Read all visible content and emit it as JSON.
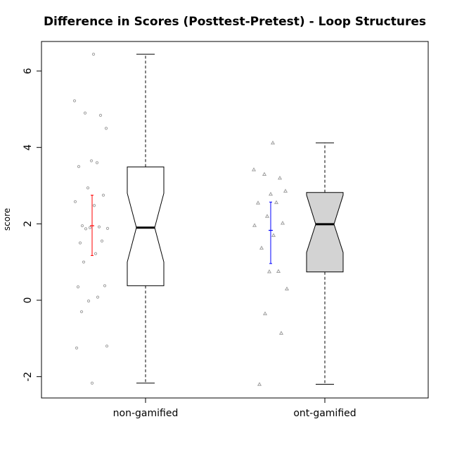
{
  "chart_data": {
    "type": "boxplot",
    "title": "Difference in Scores (Posttest-Pretest) - Loop Structures",
    "ylabel": "score",
    "xlabel": "",
    "ylim": [
      -2.6,
      6.8
    ],
    "yticks": [
      -2,
      0,
      2,
      4,
      6
    ],
    "grid": false,
    "categories": [
      "non-gamified",
      "ont-gamified"
    ],
    "groups": [
      {
        "name": "non-gamified",
        "box_fill": "#ffffff",
        "point_shape": "circle",
        "ci_color": "#ff0000",
        "stats": {
          "min": -2.17,
          "q1": 0.38,
          "median": 1.9,
          "q3": 3.49,
          "max": 6.44,
          "notch_low": 1.0,
          "notch_high": 2.8
        },
        "mean": 1.95,
        "ci": [
          1.17,
          2.75
        ],
        "points": [
          6.44,
          5.22,
          4.9,
          4.84,
          4.5,
          3.65,
          3.6,
          3.5,
          2.94,
          2.75,
          2.58,
          2.48,
          1.95,
          1.92,
          1.9,
          1.88,
          1.87,
          1.55,
          1.5,
          1.22,
          1.0,
          0.38,
          0.35,
          0.08,
          -0.02,
          -0.3,
          -1.2,
          -1.25,
          -2.17
        ]
      },
      {
        "name": "ont-gamified",
        "box_fill": "#d3d3d3",
        "point_shape": "triangle",
        "ci_color": "#0000ff",
        "stats": {
          "min": -2.2,
          "q1": 0.74,
          "median": 1.99,
          "q3": 2.82,
          "max": 4.12,
          "notch_low": 1.25,
          "notch_high": 2.75
        },
        "mean": 1.83,
        "ci": [
          0.96,
          2.57
        ],
        "points": [
          4.12,
          3.42,
          3.3,
          3.2,
          2.86,
          2.78,
          2.56,
          2.55,
          2.2,
          2.02,
          1.96,
          1.7,
          1.37,
          0.76,
          0.75,
          0.3,
          -0.35,
          -0.86,
          -2.2
        ]
      }
    ]
  }
}
